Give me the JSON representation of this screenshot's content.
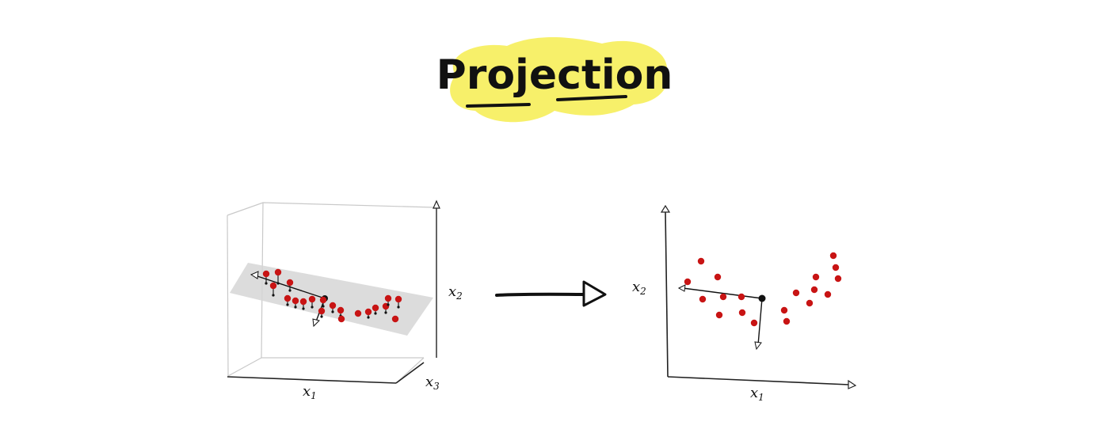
{
  "title": "Projection",
  "colors": {
    "highlight": "#f7f06a",
    "point": "#c81414",
    "plane": "#d6d6d6",
    "ink": "#111111",
    "box": "#c9c9c9"
  },
  "left_plot": {
    "axis_x": "x",
    "axis_x_sub": "1",
    "axis_y": "x",
    "axis_y_sub": "2",
    "axis_z": "x",
    "axis_z_sub": "3"
  },
  "right_plot": {
    "axis_x": "x",
    "axis_x_sub": "1",
    "axis_y": "x",
    "axis_y_sub": "2"
  }
}
